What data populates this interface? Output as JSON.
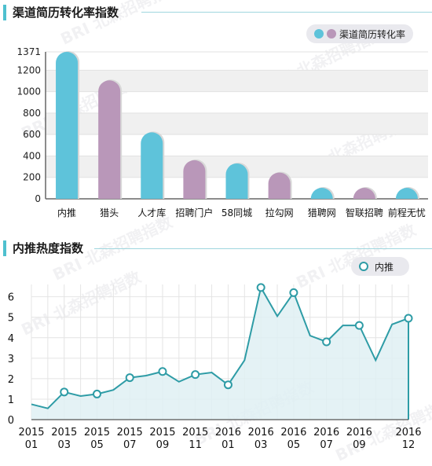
{
  "watermark": "BRI 北森招聘指数",
  "charts": [
    {
      "title": "渠道简历转化率指数",
      "legend": "渠道简历转化率",
      "colors": {
        "teal": "#5ec3da",
        "purple": "#b997b9"
      },
      "chart_data": {
        "type": "bar",
        "categories": [
          "内推",
          "猎头",
          "人才库",
          "招聘门户",
          "58同城",
          "拉勾网",
          "猎聘网",
          "智联招聘",
          "前程无忧"
        ],
        "values": [
          1371,
          1105,
          620,
          360,
          330,
          245,
          90,
          75,
          45
        ],
        "bar_colors": [
          "teal",
          "purple",
          "teal",
          "purple",
          "teal",
          "purple",
          "teal",
          "purple",
          "teal"
        ],
        "yticks": [
          0,
          200,
          400,
          600,
          800,
          1000,
          1200,
          1371
        ],
        "ylim": [
          0,
          1371
        ],
        "grid": "horizontal bands",
        "legend_position": "top-right"
      }
    },
    {
      "title": "内推热度指数",
      "legend": "内推",
      "colors": {
        "line": "#2e9ca6",
        "fill": "#dff0f3",
        "marker_fill": "#ffffff"
      },
      "chart_data": {
        "type": "area",
        "series": [
          {
            "name": "内推",
            "x": [
              "2015-01",
              "2015-02",
              "2015-03",
              "2015-04",
              "2015-05",
              "2015-06",
              "2015-07",
              "2015-08",
              "2015-09",
              "2015-10",
              "2015-11",
              "2015-12",
              "2016-01",
              "2016-02",
              "2016-03",
              "2016-04",
              "2016-05",
              "2016-06",
              "2016-07",
              "2016-08",
              "2016-09",
              "2016-10",
              "2016-11",
              "2016-12"
            ],
            "values": [
              0.75,
              0.55,
              1.35,
              1.15,
              1.25,
              1.45,
              2.05,
              2.15,
              2.35,
              1.85,
              2.2,
              2.3,
              1.7,
              2.9,
              6.45,
              5.05,
              6.2,
              4.1,
              3.8,
              4.6,
              4.6,
              2.9,
              4.65,
              4.95
            ],
            "markers_at": [
              "2015-03",
              "2015-05",
              "2015-07",
              "2015-09",
              "2015-11",
              "2016-01",
              "2016-03",
              "2016-05",
              "2016-07",
              "2016-09",
              "2016-12"
            ]
          }
        ],
        "xtick_labels": [
          {
            "year": "2015",
            "month": "01"
          },
          {
            "year": "2015",
            "month": "03"
          },
          {
            "year": "2015",
            "month": "05"
          },
          {
            "year": "2015",
            "month": "07"
          },
          {
            "year": "2015",
            "month": "09"
          },
          {
            "year": "2015",
            "month": "11"
          },
          {
            "year": "2016",
            "month": "01"
          },
          {
            "year": "2016",
            "month": "03"
          },
          {
            "year": "2016",
            "month": "05"
          },
          {
            "year": "2016",
            "month": "07"
          },
          {
            "year": "2016",
            "month": "09"
          },
          {
            "year": "2016",
            "month": "12"
          }
        ],
        "yticks": [
          0,
          1,
          2,
          3,
          4,
          5,
          6
        ],
        "ylim": [
          0,
          6.6
        ],
        "grid": "vertical and horizontal",
        "legend_position": "top-right"
      }
    }
  ]
}
